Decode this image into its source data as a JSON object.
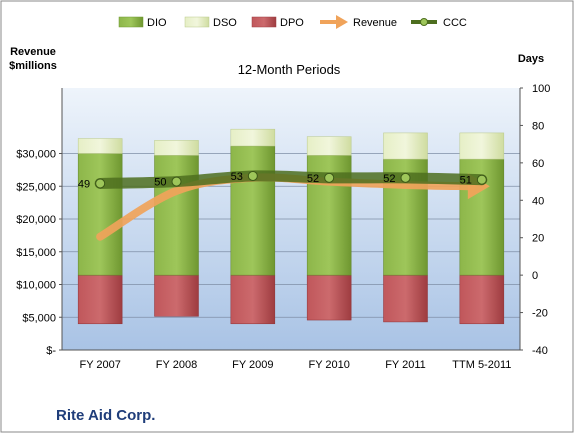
{
  "chart_data": {
    "type": "bar",
    "title": "12-Month Periods",
    "footer_title": "Rite Aid Corp.",
    "left_axis_label_line1": "Revenue",
    "left_axis_label_line2": "$millions",
    "right_axis_label": "Days",
    "categories": [
      "FY 2007",
      "FY 2008",
      "FY 2009",
      "FY 2010",
      "FY 2011",
      "TTM 5-2011"
    ],
    "left_axis": {
      "min": 0,
      "max": 40000,
      "step": 5000,
      "tick_labels": [
        "$-",
        "$5,000",
        "$10,000",
        "$15,000",
        "$20,000",
        "$25,000",
        "$30,000"
      ]
    },
    "right_axis": {
      "min": -40,
      "max": 100,
      "step": 20,
      "tick_labels": [
        "-40",
        "-20",
        "0",
        "20",
        "40",
        "60",
        "80",
        "100"
      ]
    },
    "legend_position": "top",
    "grid": true,
    "series": [
      {
        "name": "DIO",
        "axis": "right",
        "kind": "stacked-bar",
        "color": "#7ea63a",
        "values": [
          65,
          64,
          69,
          64,
          62,
          62
        ]
      },
      {
        "name": "DSO",
        "axis": "right",
        "kind": "stacked-bar",
        "color": "#dfeab4",
        "values": [
          8,
          8,
          9,
          10,
          14,
          14
        ]
      },
      {
        "name": "DPO",
        "axis": "right",
        "kind": "negative-bar",
        "color": "#b44a4e",
        "values": [
          -26,
          -22,
          -26,
          -24,
          -25,
          -26
        ]
      },
      {
        "name": "Revenue",
        "axis": "left",
        "kind": "arrow-line",
        "color": "#f0a35a",
        "values": [
          17300,
          24300,
          26300,
          25700,
          25200,
          25000
        ]
      },
      {
        "name": "CCC",
        "axis": "right",
        "kind": "line",
        "color": "#4d6e1f",
        "values": [
          49,
          50,
          53,
          52,
          52,
          51
        ],
        "data_labels": [
          "49",
          "50",
          "53",
          "52",
          "52",
          "51"
        ]
      }
    ]
  }
}
